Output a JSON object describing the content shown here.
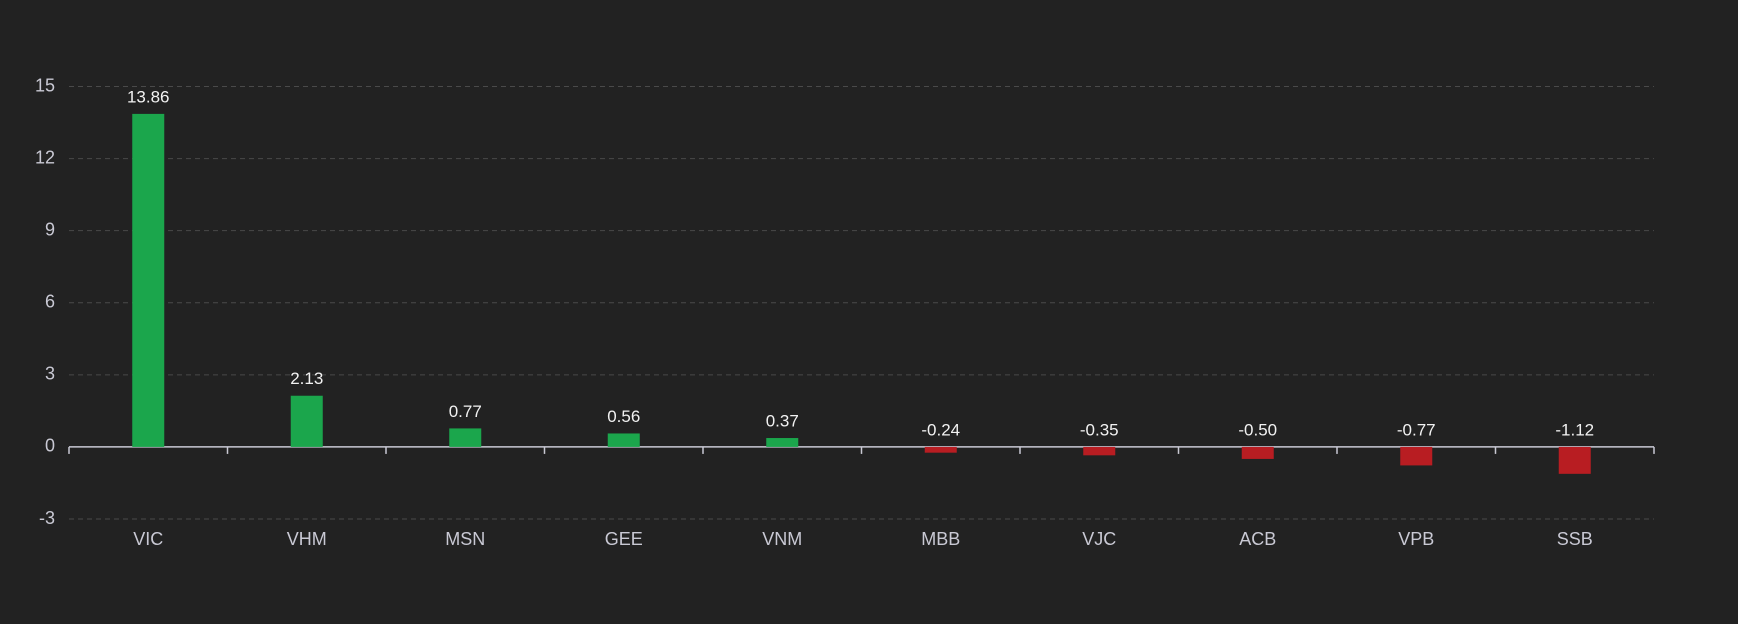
{
  "chart_data": {
    "type": "bar",
    "categories": [
      "VIC",
      "VHM",
      "MSN",
      "GEE",
      "VNM",
      "MBB",
      "VJC",
      "ACB",
      "VPB",
      "SSB"
    ],
    "values": [
      13.86,
      2.13,
      0.77,
      0.56,
      0.37,
      -0.24,
      -0.35,
      -0.5,
      -0.77,
      -1.12
    ],
    "value_labels": [
      "13.86",
      "2.13",
      "0.77",
      "0.56",
      "0.37",
      "-0.24",
      "-0.35",
      "-0.50",
      "-0.77",
      "-1.12"
    ],
    "colors": [
      "#1ba64c",
      "#1ba64c",
      "#1ba64c",
      "#1ba64c",
      "#1ba64c",
      "#b81d22",
      "#b81d22",
      "#b81d22",
      "#b81d22",
      "#b81d22"
    ],
    "ylim": [
      -3,
      15
    ],
    "yticks": [
      -3,
      0,
      3,
      6,
      9,
      12,
      15
    ],
    "grid": true
  }
}
